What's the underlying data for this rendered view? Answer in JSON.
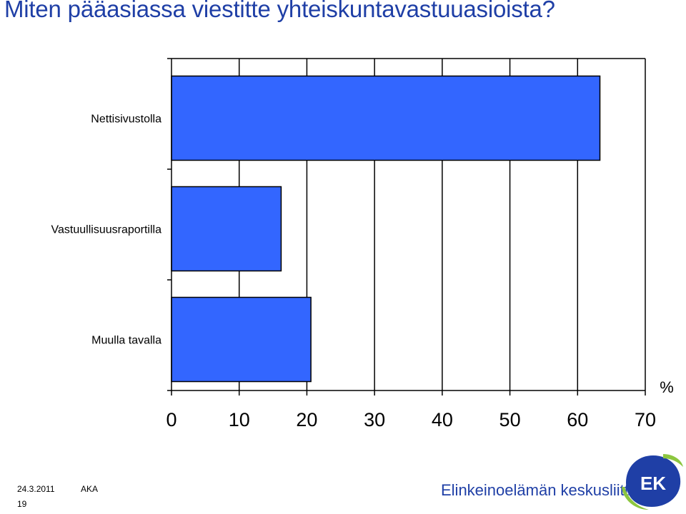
{
  "slide": {
    "title": "Miten pääasiassa viestitte yhteiskuntavastuuasioista?"
  },
  "chart_data": {
    "type": "bar",
    "orientation": "horizontal",
    "title": "",
    "categories": [
      "Nettisivustolla",
      "Vastuullisuusraportilla",
      "Muulla tavalla"
    ],
    "values": [
      63.3,
      16.2,
      20.6
    ],
    "xlabel": "%",
    "ylabel": "",
    "xlim": [
      0,
      70
    ],
    "xticks": [
      "0",
      "10",
      "20",
      "30",
      "40",
      "50",
      "60",
      "70"
    ],
    "grid": true,
    "bar_color": "#3366ff",
    "bar_border_color": "#000000"
  },
  "footer": {
    "date": "24.3.2011",
    "author": "AKA",
    "page_number": "19"
  },
  "logo": {
    "text": "Elinkeinoelämän keskusliitto",
    "mark_text": "EK",
    "colors": {
      "blue": "#1f3fa6",
      "green": "#8cc63f"
    }
  }
}
